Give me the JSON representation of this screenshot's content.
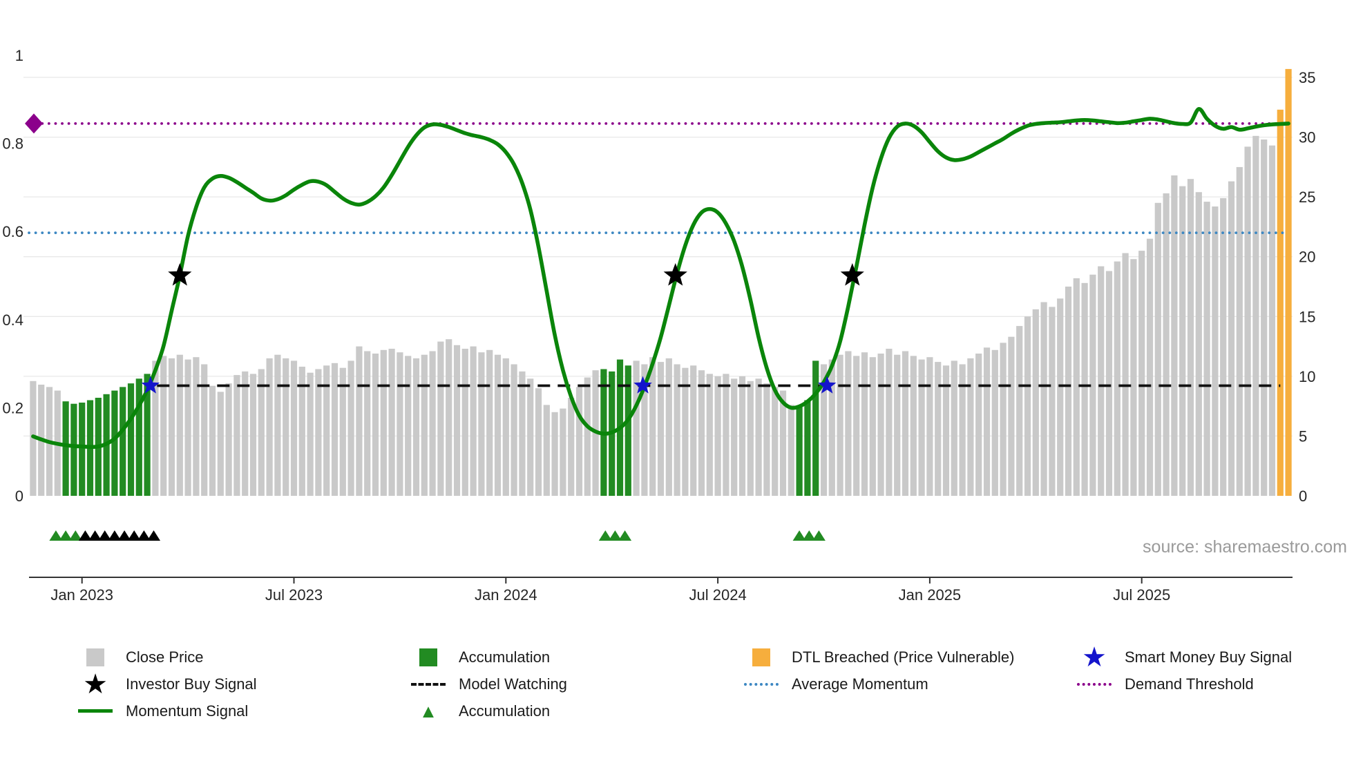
{
  "source_credit": "source: sharemaestro.com",
  "chart_data": {
    "type": "mixed-bar-line",
    "title": "",
    "x_tick_labels": [
      "Jan 2023",
      "Jul 2023",
      "Jan 2024",
      "Jul 2024",
      "Jan 2025",
      "Jul 2025"
    ],
    "x_tick_weeks": [
      6,
      32,
      58,
      84,
      110,
      136
    ],
    "left_axis": {
      "ticks": [
        "0",
        "0.2",
        "0.4",
        "0.6",
        "0.8",
        "1"
      ],
      "range": [
        0,
        1
      ]
    },
    "right_axis": {
      "ticks": [
        "0",
        "5",
        "10",
        "15",
        "20",
        "25",
        "30",
        "35"
      ],
      "range": [
        0,
        35
      ]
    },
    "grid": "horizontal-faint",
    "legend_position": "bottom",
    "bars": {
      "name": "Close Price",
      "axis": "right",
      "values": [
        9.6,
        9.3,
        9.1,
        8.8,
        7.9,
        7.7,
        7.8,
        8.0,
        8.2,
        8.5,
        8.8,
        9.1,
        9.4,
        9.8,
        10.2,
        11.3,
        11.7,
        11.5,
        11.8,
        11.4,
        11.6,
        11.0,
        9.2,
        8.7,
        9.4,
        10.1,
        10.4,
        10.2,
        10.6,
        11.5,
        11.8,
        11.5,
        11.3,
        10.8,
        10.3,
        10.6,
        10.9,
        11.1,
        10.7,
        11.3,
        12.5,
        12.1,
        11.9,
        12.2,
        12.3,
        12.0,
        11.7,
        11.5,
        11.8,
        12.1,
        12.9,
        13.1,
        12.6,
        12.3,
        12.5,
        12.0,
        12.2,
        11.8,
        11.5,
        11.0,
        10.4,
        9.8,
        9.0,
        7.6,
        7.0,
        7.3,
        8.2,
        9.1,
        9.9,
        10.5,
        10.6,
        10.4,
        11.4,
        10.9,
        11.3,
        11.0,
        11.6,
        11.2,
        11.5,
        11.0,
        10.7,
        10.9,
        10.5,
        10.2,
        10.0,
        10.2,
        9.8,
        10.0,
        9.6,
        9.8,
        9.4,
        9.1,
        8.8,
        7.6,
        7.4,
        8.0,
        11.3,
        11.0,
        11.4,
        11.8,
        12.1,
        11.7,
        12.0,
        11.6,
        11.9,
        12.3,
        11.8,
        12.1,
        11.7,
        11.4,
        11.6,
        11.2,
        10.9,
        11.3,
        11.0,
        11.5,
        11.9,
        12.4,
        12.2,
        12.8,
        13.3,
        14.2,
        15.0,
        15.6,
        16.2,
        15.8,
        16.5,
        17.5,
        18.2,
        17.8,
        18.5,
        19.2,
        18.8,
        19.6,
        20.3,
        19.8,
        20.5,
        21.5,
        24.5,
        25.3,
        26.8,
        25.9,
        26.5,
        25.4,
        24.6,
        24.2,
        24.9,
        26.3,
        27.5,
        29.2,
        30.1,
        29.8,
        29.3,
        32.3,
        35.7
      ],
      "accum_ranges": [
        [
          4,
          14
        ],
        [
          70,
          73
        ],
        [
          94,
          96
        ]
      ],
      "dtl_ranges": [
        [
          153,
          154
        ]
      ],
      "colors": {
        "close": "#c9c9c9",
        "accum": "#228b22",
        "dtl": "#f6ae3d"
      }
    },
    "momentum": {
      "name": "Momentum Signal",
      "axis": "left",
      "color": "#0a850a",
      "values": [
        0.135,
        0.128,
        0.122,
        0.118,
        0.115,
        0.113,
        0.112,
        0.111,
        0.112,
        0.118,
        0.13,
        0.15,
        0.175,
        0.205,
        0.24,
        0.285,
        0.34,
        0.42,
        0.5,
        0.59,
        0.655,
        0.7,
        0.72,
        0.726,
        0.722,
        0.712,
        0.7,
        0.688,
        0.675,
        0.67,
        0.673,
        0.682,
        0.695,
        0.706,
        0.714,
        0.713,
        0.705,
        0.69,
        0.675,
        0.665,
        0.661,
        0.667,
        0.68,
        0.7,
        0.728,
        0.76,
        0.792,
        0.818,
        0.836,
        0.843,
        0.842,
        0.837,
        0.83,
        0.823,
        0.818,
        0.814,
        0.808,
        0.798,
        0.78,
        0.752,
        0.71,
        0.65,
        0.565,
        0.465,
        0.365,
        0.285,
        0.225,
        0.182,
        0.158,
        0.146,
        0.141,
        0.144,
        0.154,
        0.173,
        0.205,
        0.248,
        0.3,
        0.36,
        0.432,
        0.505,
        0.568,
        0.615,
        0.643,
        0.651,
        0.643,
        0.618,
        0.578,
        0.52,
        0.445,
        0.36,
        0.29,
        0.24,
        0.212,
        0.2,
        0.203,
        0.214,
        0.232,
        0.258,
        0.295,
        0.35,
        0.43,
        0.52,
        0.615,
        0.7,
        0.765,
        0.812,
        0.838,
        0.845,
        0.84,
        0.825,
        0.803,
        0.782,
        0.768,
        0.762,
        0.764,
        0.77,
        0.78,
        0.79,
        0.8,
        0.81,
        0.822,
        0.832,
        0.84,
        0.844,
        0.846,
        0.847,
        0.848,
        0.85,
        0.852,
        0.853,
        0.852,
        0.85,
        0.848,
        0.846,
        0.847,
        0.85,
        0.853,
        0.856,
        0.854,
        0.85,
        0.846,
        0.844,
        0.847,
        0.878,
        0.856,
        0.84,
        0.833,
        0.837,
        0.831,
        0.834,
        0.838,
        0.841,
        0.843,
        0.844,
        0.845
      ]
    },
    "hlines": [
      {
        "name": "Average Momentum",
        "value": 0.597,
        "color": "#3c87c2",
        "style": "dotted",
        "from_week": -0.5,
        "to_week": 154,
        "left_marker": false
      },
      {
        "name": "Demand Threshold",
        "value": 0.845,
        "color": "#8b008b",
        "style": "dotted",
        "from_week": -0.5,
        "to_week": 154,
        "left_marker": true
      },
      {
        "name": "Model Watching",
        "value": 0.25,
        "color": "#111111",
        "style": "dashed",
        "from_week": 15.2,
        "to_week": 153,
        "left_marker": false
      }
    ],
    "stars_black": {
      "name": "Investor Buy Signal",
      "color": "#000000",
      "size": 18,
      "points": [
        {
          "week": 18.0,
          "value": 0.5
        },
        {
          "week": 78.8,
          "value": 0.5
        },
        {
          "week": 100.5,
          "value": 0.5
        }
      ]
    },
    "stars_blue": {
      "name": "Smart Money Buy Signal",
      "color": "#1414cc",
      "size": 14,
      "points": [
        {
          "week": 14.4,
          "value": 0.25
        },
        {
          "week": 74.8,
          "value": 0.25
        },
        {
          "week": 97.4,
          "value": 0.25
        }
      ]
    },
    "below_markers": [
      {
        "name": "accumulation-markers-green",
        "color": "#228b22",
        "weeks": [
          2.8,
          4.0,
          5.2
        ]
      },
      {
        "name": "accumulation-markers-black",
        "color": "#000000",
        "weeks": [
          6.4,
          7.6,
          8.8,
          10.0,
          11.2,
          12.4,
          13.6,
          14.8
        ]
      },
      {
        "name": "accumulation-markers-green",
        "color": "#228b22",
        "weeks": [
          70.2,
          71.4,
          72.6
        ]
      },
      {
        "name": "accumulation-markers-green",
        "color": "#228b22",
        "weeks": [
          94.0,
          95.2,
          96.4
        ]
      }
    ]
  },
  "legend": {
    "items": [
      {
        "label": "Close Price",
        "swatch": "square",
        "color": "#c9c9c9",
        "row": 1,
        "col": 1
      },
      {
        "label": "Accumulation",
        "swatch": "square",
        "color": "#228b22",
        "row": 1,
        "col": 2
      },
      {
        "label": "DTL Breached (Price Vulnerable)",
        "swatch": "square",
        "color": "#f6ae3d",
        "row": 1,
        "col": 3
      },
      {
        "label": "Smart Money Buy Signal",
        "swatch": "star",
        "color": "#1414cc",
        "row": 1,
        "col": 4
      },
      {
        "label": "Investor Buy Signal",
        "swatch": "star",
        "color": "#000000",
        "row": 2,
        "col": 1
      },
      {
        "label": "Model Watching",
        "swatch": "dashed-line",
        "color": "#111111",
        "row": 2,
        "col": 2
      },
      {
        "label": "Average Momentum",
        "swatch": "dotted-line",
        "color": "#3c87c2",
        "row": 2,
        "col": 3
      },
      {
        "label": "Demand Threshold",
        "swatch": "dotted-line",
        "color": "#8b008b",
        "row": 2,
        "col": 4
      },
      {
        "label": "Momentum Signal",
        "swatch": "line",
        "color": "#0a850a",
        "row": 3,
        "col": 1
      },
      {
        "label": "Accumulation",
        "swatch": "triangle",
        "color": "#228b22",
        "row": 3,
        "col": 2
      }
    ]
  }
}
